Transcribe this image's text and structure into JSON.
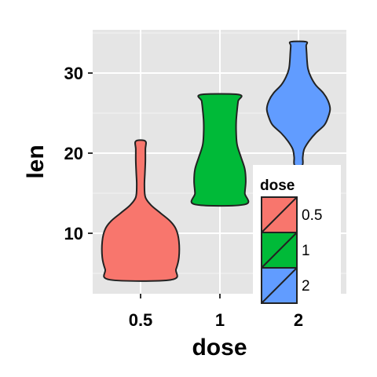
{
  "chart_data": {
    "type": "violin",
    "xlabel": "dose",
    "ylabel": "len",
    "categories": [
      "0.5",
      "1",
      "2"
    ],
    "ylim": [
      2.5,
      36
    ],
    "yticks": [
      10,
      20,
      30
    ],
    "grid": true,
    "series": [
      {
        "category": "0.5",
        "color": "#F8766D",
        "min": 4.2,
        "max": 21.5,
        "profile": [
          [
            4.2,
            3.2
          ],
          [
            5.5,
            3.7
          ],
          [
            7,
            4.0
          ],
          [
            9,
            4.0
          ],
          [
            10.5,
            3.7
          ],
          [
            11.5,
            3.1
          ],
          [
            12.5,
            2.1
          ],
          [
            13.5,
            1.1
          ],
          [
            14.5,
            0.5
          ],
          [
            16,
            0.4
          ],
          [
            17.5,
            0.45
          ],
          [
            19,
            0.5
          ],
          [
            20.5,
            0.5
          ],
          [
            21.5,
            0.5
          ]
        ]
      },
      {
        "category": "1",
        "color": "#00BA38",
        "min": 13.6,
        "max": 27.3,
        "profile": [
          [
            13.6,
            2.6
          ],
          [
            15,
            2.6
          ],
          [
            16.5,
            2.7
          ],
          [
            18,
            2.6
          ],
          [
            19.5,
            2.2
          ],
          [
            21,
            1.8
          ],
          [
            22.5,
            1.7
          ],
          [
            24,
            1.7
          ],
          [
            25.5,
            1.8
          ],
          [
            26.5,
            1.9
          ],
          [
            27.3,
            2.0
          ]
        ]
      },
      {
        "category": "2",
        "color": "#619CFF",
        "min": 18.5,
        "max": 33.9,
        "profile": [
          [
            18.5,
            0.4
          ],
          [
            19.5,
            0.45
          ],
          [
            20.5,
            0.6
          ],
          [
            21.5,
            1.1
          ],
          [
            22.5,
            1.8
          ],
          [
            23.5,
            2.7
          ],
          [
            24.5,
            3.1
          ],
          [
            25.5,
            3.3
          ],
          [
            26.5,
            3.1
          ],
          [
            27.5,
            2.6
          ],
          [
            28.5,
            1.8
          ],
          [
            29.5,
            1.3
          ],
          [
            30.5,
            1.0
          ],
          [
            31.5,
            0.9
          ],
          [
            32.5,
            0.85
          ],
          [
            33.4,
            0.8
          ],
          [
            33.9,
            0.8
          ]
        ]
      }
    ],
    "legend": {
      "title": "dose",
      "placement": "bottom-right inside",
      "items": [
        {
          "label": "0.5",
          "color": "#F8766D"
        },
        {
          "label": "1",
          "color": "#00BA38"
        },
        {
          "label": "2",
          "color": "#619CFF"
        }
      ]
    }
  }
}
